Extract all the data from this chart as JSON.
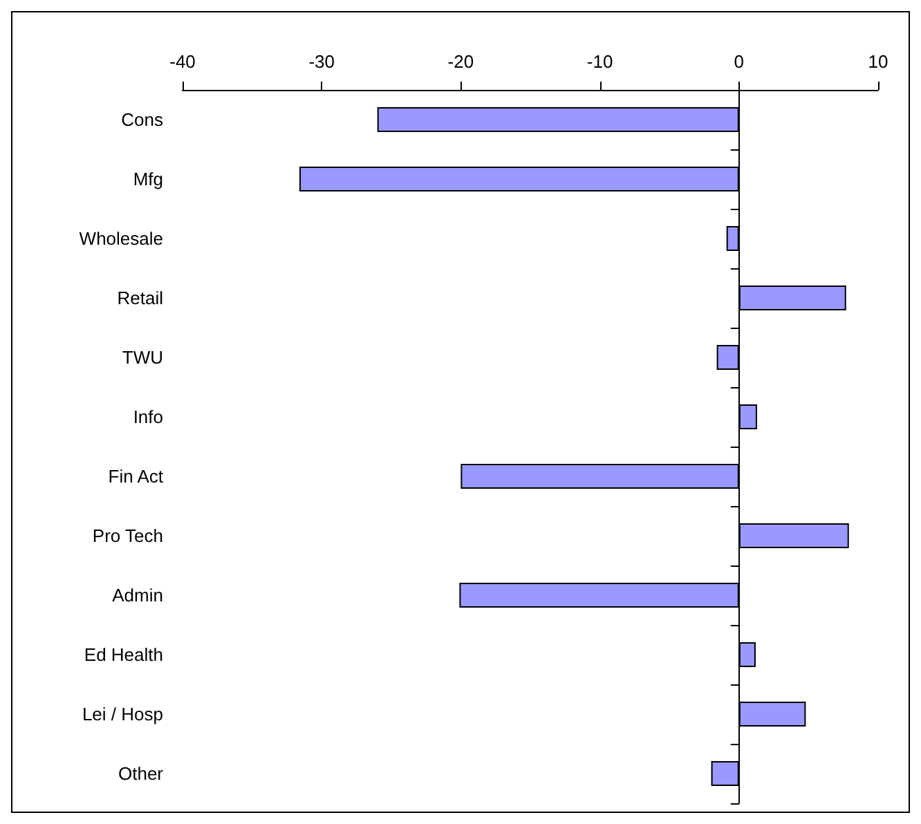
{
  "chart_data": {
    "type": "bar",
    "orientation": "horizontal",
    "categories": [
      "Cons",
      "Mfg",
      "Wholesale",
      "Retail",
      "TWU",
      "Info",
      "Fin Act",
      "Pro Tech",
      "Admin",
      "Ed Health",
      "Lei / Hosp",
      "Other"
    ],
    "values": [
      -26,
      -31.6,
      -0.9,
      7.7,
      -1.6,
      1.3,
      -20,
      7.9,
      -20.1,
      1.2,
      4.8,
      -2
    ],
    "color": "#9999ff",
    "xlim": [
      -40,
      10
    ],
    "xticks": [
      -40,
      -30,
      -20,
      -10,
      0,
      10
    ]
  }
}
